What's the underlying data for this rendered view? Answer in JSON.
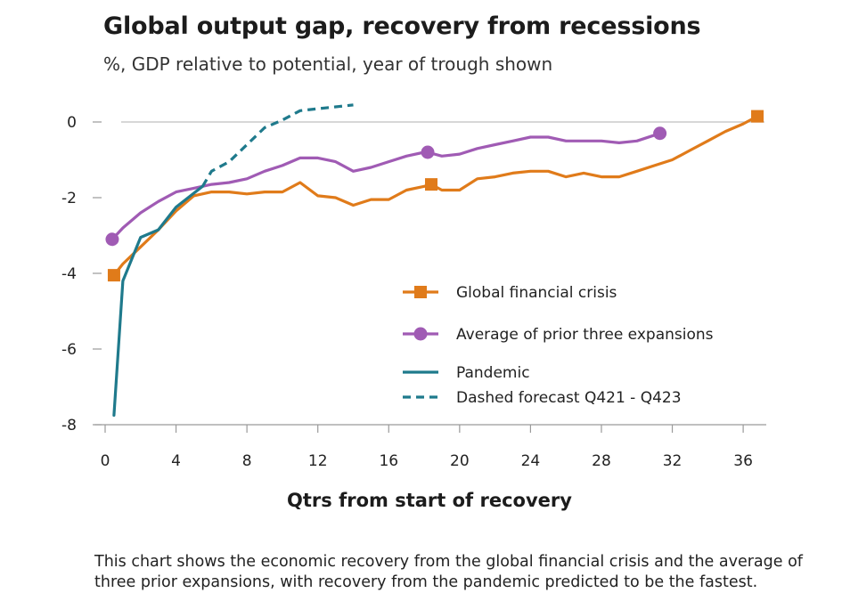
{
  "chart_data": {
    "type": "line",
    "title": "Global output gap, recovery from recessions",
    "subtitle": "%, GDP relative to potential, year of trough shown",
    "xlabel": "Qtrs from start of recovery",
    "ylabel": "",
    "xlim": [
      0,
      37
    ],
    "ylim": [
      -8,
      0
    ],
    "xticks": [
      0,
      4,
      8,
      12,
      16,
      20,
      24,
      28,
      32,
      36
    ],
    "yticks": [
      0,
      -2,
      -4,
      -6,
      -8
    ],
    "grid": "horizontal-only at 0",
    "legend_position": "center-right",
    "colors": {
      "gfc": "#e07b1a",
      "avg": "#a05bb4",
      "pandemic": "#1f7a8c"
    },
    "series": [
      {
        "name": "Global financial crisis",
        "color": "#e07b1a",
        "marker": "square",
        "style": "solid",
        "markers_at": [
          0.5,
          18.4,
          36.8
        ],
        "x": [
          0.5,
          1,
          2,
          3,
          4,
          5,
          6,
          7,
          8,
          9,
          10,
          11,
          12,
          13,
          14,
          15,
          16,
          17,
          18,
          18.4,
          19,
          20,
          21,
          22,
          23,
          24,
          25,
          26,
          27,
          28,
          29,
          30,
          31,
          32,
          33,
          34,
          35,
          36,
          36.8
        ],
        "y": [
          -4.05,
          -3.75,
          -3.3,
          -2.85,
          -2.35,
          -1.95,
          -1.85,
          -1.85,
          -1.9,
          -1.85,
          -1.85,
          -1.6,
          -1.95,
          -2.0,
          -2.2,
          -2.05,
          -2.05,
          -1.8,
          -1.7,
          -1.65,
          -1.8,
          -1.8,
          -1.5,
          -1.45,
          -1.35,
          -1.3,
          -1.3,
          -1.45,
          -1.35,
          -1.45,
          -1.45,
          -1.3,
          -1.15,
          -1.0,
          -0.75,
          -0.5,
          -0.25,
          -0.05,
          0.15
        ]
      },
      {
        "name": "Average of prior three expansions",
        "color": "#a05bb4",
        "marker": "circle",
        "style": "solid",
        "markers_at": [
          0.4,
          18.2,
          31.3
        ],
        "x": [
          0.4,
          1,
          2,
          3,
          4,
          5,
          6,
          7,
          8,
          9,
          10,
          11,
          12,
          13,
          14,
          15,
          16,
          17,
          18,
          18.2,
          19,
          20,
          21,
          22,
          23,
          24,
          25,
          26,
          27,
          28,
          29,
          30,
          31.3
        ],
        "y": [
          -3.1,
          -2.8,
          -2.4,
          -2.1,
          -1.85,
          -1.75,
          -1.65,
          -1.6,
          -1.5,
          -1.3,
          -1.15,
          -0.95,
          -0.95,
          -1.05,
          -1.3,
          -1.2,
          -1.05,
          -0.9,
          -0.8,
          -0.8,
          -0.9,
          -0.85,
          -0.7,
          -0.6,
          -0.5,
          -0.4,
          -0.4,
          -0.5,
          -0.5,
          -0.5,
          -0.55,
          -0.5,
          -0.3
        ]
      },
      {
        "name": "Pandemic",
        "color": "#1f7a8c",
        "style": "solid",
        "x": [
          0.5,
          1,
          2,
          3,
          4,
          5.5
        ],
        "y": [
          -7.75,
          -4.2,
          -3.05,
          -2.85,
          -2.25,
          -1.7
        ]
      },
      {
        "name": "Dashed forecast Q421 - Q423",
        "color": "#1f7a8c",
        "style": "dashed",
        "x": [
          5.5,
          6,
          7,
          8,
          9,
          10,
          11,
          12,
          13,
          14
        ],
        "y": [
          -1.7,
          -1.3,
          -1.05,
          -0.6,
          -0.15,
          0.05,
          0.3,
          0.35,
          0.4,
          0.45
        ]
      }
    ]
  },
  "caption": "This chart shows the economic recovery from the global financial crisis and the average of three prior expansions, with recovery from the pandemic predicted to be the fastest."
}
